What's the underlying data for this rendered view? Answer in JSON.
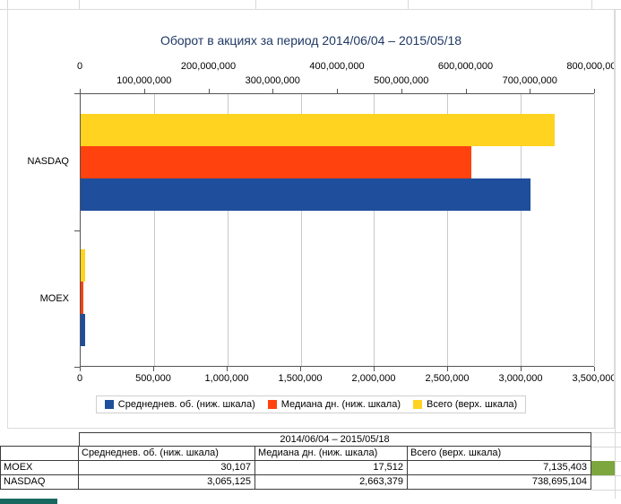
{
  "chart_data": {
    "type": "bar",
    "orientation": "horizontal",
    "title": "Оборот в акциях за период 2014/06/04 – 2015/05/18",
    "categories": [
      "NASDAQ",
      "MOEX"
    ],
    "series": [
      {
        "name": "Среднеднев. об. (ниж. шкала)",
        "key": "avg-daily",
        "axis": "bottom",
        "color": "#1f4e9c",
        "values": [
          3065125,
          30107
        ]
      },
      {
        "name": "Медиана дн. (ниж. шкала)",
        "key": "median-daily",
        "axis": "bottom",
        "color": "#ff420e",
        "values": [
          2663379,
          17512
        ]
      },
      {
        "name": "Всего (верх. шкала)",
        "key": "total",
        "axis": "top",
        "color": "#ffd320",
        "values": [
          738695104,
          7135403
        ]
      }
    ],
    "top_axis": {
      "min": 0,
      "max": 800000000,
      "tick_labels": [
        "0",
        "100,000,000",
        "200,000,000",
        "300,000,000",
        "400,000,000",
        "500,000,000",
        "600,000,000",
        "700,000,000",
        "800,000,000"
      ]
    },
    "bottom_axis": {
      "min": 0,
      "max": 3500000,
      "tick_labels": [
        "0",
        "500,000",
        "1,000,000",
        "1,500,000",
        "2,000,000",
        "2,500,000",
        "3,000,000",
        "3,500,000"
      ]
    },
    "legend_position": "bottom",
    "grid": "vertical-only"
  },
  "table": {
    "period_header": "2014/06/04 – 2015/05/18",
    "col_headers": [
      "Среднеднев. об. (ниж. шкала)",
      "Медиана дн. (ниж. шкала)",
      "Всего (верх. шкала)"
    ],
    "rows": [
      {
        "label": "MOEX",
        "values": [
          "30,107",
          "17,512",
          "7,135,403"
        ]
      },
      {
        "label": "NASDAQ",
        "values": [
          "3,065,125",
          "2,663,379",
          "738,695,104"
        ]
      }
    ]
  },
  "accents": {
    "selected_cell_green": "#7da63e",
    "sheet_strip_teal": "#17695f"
  }
}
